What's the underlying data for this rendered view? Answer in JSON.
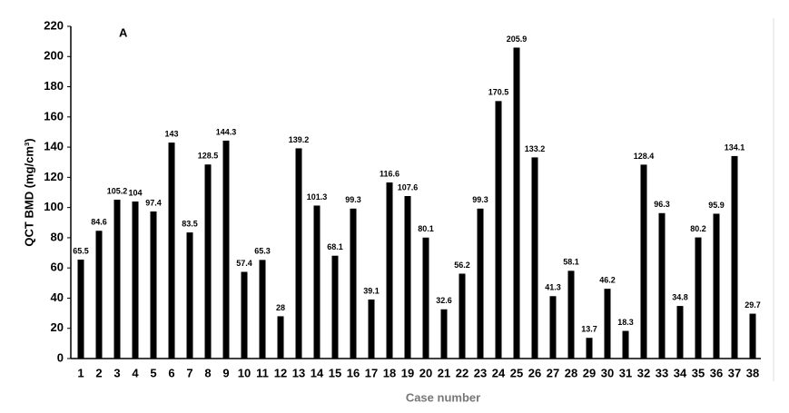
{
  "chart_data": {
    "type": "bar",
    "annotation": "A",
    "x_label": "Case number",
    "y_label": "QCT BMD  (mg/cm³)",
    "categories": [
      "1",
      "2",
      "3",
      "4",
      "5",
      "6",
      "7",
      "8",
      "9",
      "10",
      "11",
      "12",
      "13",
      "14",
      "15",
      "16",
      "17",
      "18",
      "19",
      "20",
      "21",
      "22",
      "23",
      "24",
      "25",
      "26",
      "27",
      "28",
      "29",
      "30",
      "31",
      "32",
      "33",
      "34",
      "35",
      "36",
      "37",
      "38"
    ],
    "values": [
      65.5,
      84.6,
      105.2,
      104,
      97.4,
      143,
      83.5,
      128.5,
      144.3,
      57.4,
      65.3,
      28,
      139.2,
      101.3,
      68.1,
      99.3,
      39.1,
      116.6,
      107.6,
      80.1,
      32.6,
      56.2,
      99.3,
      170.5,
      205.9,
      133.2,
      41.3,
      58.1,
      13.7,
      46.2,
      18.3,
      128.4,
      96.3,
      34.8,
      80.2,
      95.9,
      134.1,
      29.7
    ],
    "color": "#000000",
    "ylim": [
      0,
      220
    ],
    "yticks": [
      0,
      20,
      40,
      60,
      80,
      100,
      120,
      140,
      160,
      180,
      200,
      220
    ],
    "grid": false
  }
}
